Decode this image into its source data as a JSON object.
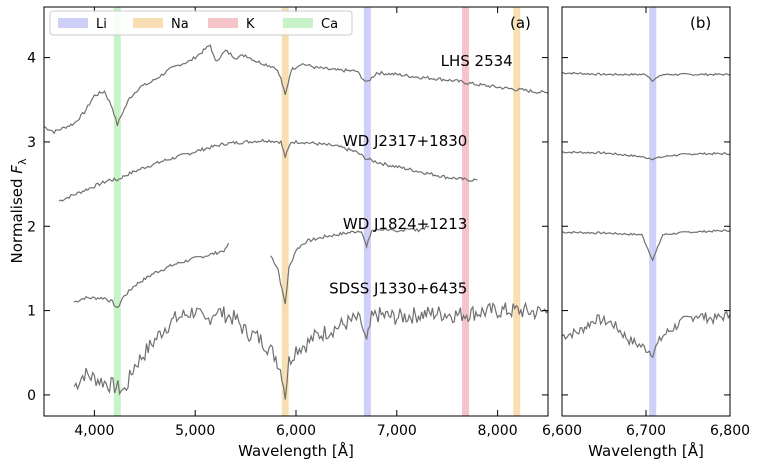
{
  "figure": {
    "ylabel_main": "Normalised ",
    "ylabel_italic": "F",
    "ylabel_sub": "λ",
    "legend": [
      {
        "label": "Li",
        "color": "#cfd0f7"
      },
      {
        "label": "Na",
        "color": "#f8dfb3"
      },
      {
        "label": "K",
        "color": "#f5c4c9"
      },
      {
        "label": "Ca",
        "color": "#c8f2c8"
      }
    ]
  },
  "chart_data": [
    {
      "type": "line",
      "panel_label": "(a)",
      "xlabel": "Wavelength [Å]",
      "ylabel": "Normalised Fλ",
      "xlim": [
        3500,
        8500
      ],
      "ylim": [
        -0.25,
        4.6
      ],
      "xticks": [
        4000,
        5000,
        6000,
        7000,
        8000
      ],
      "xtick_labels": [
        "4,000",
        "5,000",
        "6,000",
        "7,000",
        "8,000"
      ],
      "yticks": [
        0,
        1,
        2,
        3,
        4
      ],
      "ytick_labels": [
        "0",
        "1",
        "2",
        "3",
        "4"
      ],
      "grid": false,
      "legend_position": "top-left",
      "bands": [
        {
          "element": "Ca",
          "center": 4227,
          "color": "#c8f2c8"
        },
        {
          "element": "Na",
          "center": 5893,
          "color": "#f8dfb3"
        },
        {
          "element": "Li",
          "center": 6708,
          "color": "#cfd0f7"
        },
        {
          "element": "K",
          "center": 7682,
          "color": "#f5c4c9"
        },
        {
          "element": "Na",
          "center": 8190,
          "color": "#f8dfb3"
        }
      ],
      "series": [
        {
          "name": "LHS 2534",
          "label_anchor": [
            8150,
            3.9
          ],
          "x": [
            3500,
            3600,
            3700,
            3800,
            3900,
            4000,
            4100,
            4180,
            4227,
            4280,
            4350,
            4450,
            4550,
            4650,
            4750,
            4850,
            4950,
            5050,
            5150,
            5200,
            5300,
            5400,
            5500,
            5600,
            5700,
            5800,
            5850,
            5893,
            5950,
            6050,
            6200,
            6400,
            6600,
            6700,
            6800,
            7000,
            7200,
            7400,
            7600,
            7800,
            8000,
            8200,
            8500
          ],
          "y": [
            3.18,
            3.12,
            3.17,
            3.22,
            3.35,
            3.55,
            3.6,
            3.4,
            3.2,
            3.35,
            3.52,
            3.65,
            3.7,
            3.78,
            3.86,
            3.92,
            3.96,
            4.05,
            4.15,
            3.95,
            4.08,
            4.0,
            4.03,
            3.96,
            3.92,
            3.88,
            3.75,
            3.55,
            3.85,
            3.93,
            3.88,
            3.85,
            3.84,
            3.7,
            3.82,
            3.8,
            3.77,
            3.75,
            3.72,
            3.68,
            3.65,
            3.62,
            3.58
          ]
        },
        {
          "name": "WD J2317+1830",
          "label_anchor": [
            7700,
            2.95
          ],
          "x": [
            3650,
            3750,
            3850,
            3950,
            4050,
            4150,
            4227,
            4300,
            4400,
            4500,
            4700,
            4900,
            5100,
            5300,
            5500,
            5700,
            5850,
            5893,
            5950,
            6050,
            6200,
            6400,
            6600,
            6700,
            6750,
            6900,
            7100,
            7300,
            7500,
            7700,
            7800
          ],
          "y": [
            2.3,
            2.35,
            2.4,
            2.45,
            2.5,
            2.55,
            2.55,
            2.6,
            2.65,
            2.7,
            2.78,
            2.85,
            2.92,
            2.98,
            3.0,
            3.02,
            3.0,
            2.82,
            3.0,
            3.0,
            2.98,
            2.95,
            2.88,
            2.8,
            2.78,
            2.73,
            2.68,
            2.63,
            2.58,
            2.55,
            2.55
          ]
        },
        {
          "name": "WD J1824+1213",
          "label_anchor": [
            7700,
            1.97
          ],
          "x": [
            3800,
            3900,
            4000,
            4100,
            4180,
            4227,
            4280,
            4400,
            4600,
            4800,
            5000,
            5200,
            5300,
            5330
          ],
          "y": [
            1.1,
            1.15,
            1.15,
            1.15,
            1.1,
            1.02,
            1.15,
            1.3,
            1.45,
            1.55,
            1.62,
            1.68,
            1.72,
            1.8
          ],
          "x2": [
            5750,
            5820,
            5860,
            5893,
            5930,
            6000,
            6100,
            6300,
            6500,
            6650,
            6700,
            6750,
            6900,
            7000,
            7100,
            7200,
            7320
          ],
          "y2": [
            1.65,
            1.5,
            1.25,
            1.08,
            1.5,
            1.72,
            1.82,
            1.88,
            1.92,
            1.95,
            1.75,
            1.95,
            1.97,
            1.92,
            1.98,
            1.95,
            2.0
          ]
        },
        {
          "name": "SDSS J1330+6435",
          "label_anchor": [
            7700,
            1.2
          ],
          "x": [
            3800,
            3900,
            4000,
            4100,
            4200,
            4300,
            4400,
            4500,
            4600,
            4700,
            4800,
            4900,
            5000,
            5100,
            5200,
            5300,
            5400,
            5500,
            5600,
            5700,
            5800,
            5860,
            5893,
            5930,
            6000,
            6100,
            6200,
            6300,
            6400,
            6500,
            6600,
            6650,
            6700,
            6750,
            6800,
            7000,
            7200,
            7400,
            7600,
            7800,
            8000,
            8200,
            8400,
            8500
          ],
          "y": [
            0.1,
            0.25,
            0.2,
            0.15,
            0.1,
            0.05,
            0.35,
            0.5,
            0.65,
            0.8,
            0.9,
            0.95,
            1.0,
            0.85,
            1.0,
            0.95,
            0.9,
            0.75,
            0.7,
            0.6,
            0.45,
            0.25,
            0.0,
            0.4,
            0.55,
            0.6,
            0.7,
            0.75,
            0.8,
            0.85,
            0.9,
            0.85,
            0.6,
            0.9,
            0.95,
            0.92,
            0.95,
            0.97,
            0.95,
            0.98,
            1.0,
            1.0,
            0.98,
            1.0
          ]
        }
      ]
    },
    {
      "type": "line",
      "panel_label": "(b)",
      "xlabel": "Wavelength [Å]",
      "xlim": [
        6600,
        6800
      ],
      "ylim": [
        -0.25,
        4.6
      ],
      "xticks": [
        6600,
        6700,
        6800
      ],
      "xtick_labels": [
        "6,600",
        "6,700",
        "6,800"
      ],
      "yticks": [
        0,
        1,
        2,
        3,
        4
      ],
      "grid": false,
      "bands": [
        {
          "element": "Li",
          "center": 6708,
          "color": "#cfd0f7"
        }
      ],
      "series": [
        {
          "name": "LHS 2534",
          "x": [
            6600,
            6650,
            6700,
            6708,
            6720,
            6750,
            6800
          ],
          "y": [
            3.82,
            3.8,
            3.8,
            3.73,
            3.8,
            3.8,
            3.8
          ]
        },
        {
          "name": "WD J2317+1830",
          "x": [
            6600,
            6650,
            6690,
            6708,
            6730,
            6760,
            6800
          ],
          "y": [
            2.88,
            2.87,
            2.83,
            2.8,
            2.84,
            2.86,
            2.86
          ]
        },
        {
          "name": "WD J1824+1213",
          "x": [
            6600,
            6650,
            6695,
            6708,
            6720,
            6750,
            6800
          ],
          "y": [
            1.93,
            1.92,
            1.9,
            1.6,
            1.9,
            1.93,
            1.95
          ]
        },
        {
          "name": "SDSS J1330+6435",
          "x": [
            6600,
            6620,
            6640,
            6660,
            6680,
            6700,
            6708,
            6720,
            6740,
            6760,
            6780,
            6800
          ],
          "y": [
            0.7,
            0.75,
            0.9,
            0.85,
            0.65,
            0.55,
            0.5,
            0.7,
            0.85,
            0.95,
            0.9,
            0.95
          ]
        }
      ]
    }
  ]
}
